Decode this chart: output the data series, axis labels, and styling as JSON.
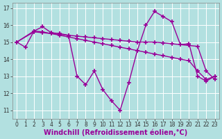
{
  "background_color": "#b2e0e0",
  "grid_color": "#ffffff",
  "line_color": "#990099",
  "line_width": 1.0,
  "marker": "+",
  "marker_size": 4,
  "marker_ew": 1.2,
  "xlabel": "Windchill (Refroidissement éolien,°C)",
  "xlabel_fontsize": 7.0,
  "ylabel_ticks": [
    11,
    12,
    13,
    14,
    15,
    16,
    17
  ],
  "xlim": [
    -0.5,
    23.5
  ],
  "ylim": [
    10.5,
    17.3
  ],
  "series": [
    {
      "x": [
        0,
        1,
        2,
        3,
        4,
        5,
        6,
        7,
        8,
        9,
        10,
        11,
        12,
        13,
        14,
        15,
        16,
        17,
        18,
        19,
        20,
        21,
        22,
        23
      ],
      "y": [
        15.0,
        14.7,
        15.65,
        15.9,
        15.55,
        15.5,
        15.4,
        13.0,
        12.5,
        13.3,
        12.2,
        11.55,
        11.0,
        12.6,
        14.5,
        16.0,
        16.8,
        16.5,
        16.2,
        14.85,
        14.9,
        13.0,
        12.7,
        13.0
      ]
    },
    {
      "x": [
        0,
        2,
        3,
        4,
        5,
        6,
        7,
        8,
        9,
        10,
        11,
        12,
        13,
        14,
        15,
        16,
        17,
        18,
        19,
        20,
        21,
        22,
        23
      ],
      "y": [
        15.0,
        15.65,
        15.6,
        15.5,
        15.4,
        15.3,
        15.2,
        15.1,
        15.0,
        14.9,
        14.8,
        14.7,
        14.6,
        14.5,
        14.4,
        14.3,
        14.2,
        14.1,
        14.0,
        13.9,
        13.3,
        12.8,
        13.0
      ]
    },
    {
      "x": [
        0,
        2,
        3,
        4,
        5,
        6,
        7,
        8,
        9,
        10,
        11,
        12,
        13,
        14,
        15,
        16,
        17,
        18,
        19,
        20,
        21,
        22,
        23
      ],
      "y": [
        15.0,
        15.6,
        15.55,
        15.5,
        15.45,
        15.4,
        15.35,
        15.3,
        15.25,
        15.2,
        15.15,
        15.1,
        15.05,
        15.0,
        15.0,
        15.0,
        14.95,
        14.9,
        14.85,
        14.8,
        14.75,
        13.3,
        12.8
      ]
    }
  ],
  "xtick_labels": [
    "0",
    "1",
    "2",
    "3",
    "4",
    "5",
    "6",
    "7",
    "8",
    "9",
    "10",
    "11",
    "12",
    "13",
    "14",
    "15",
    "16",
    "17",
    "18",
    "19",
    "20",
    "21",
    "22",
    "23"
  ],
  "tick_fontsize": 5.5
}
